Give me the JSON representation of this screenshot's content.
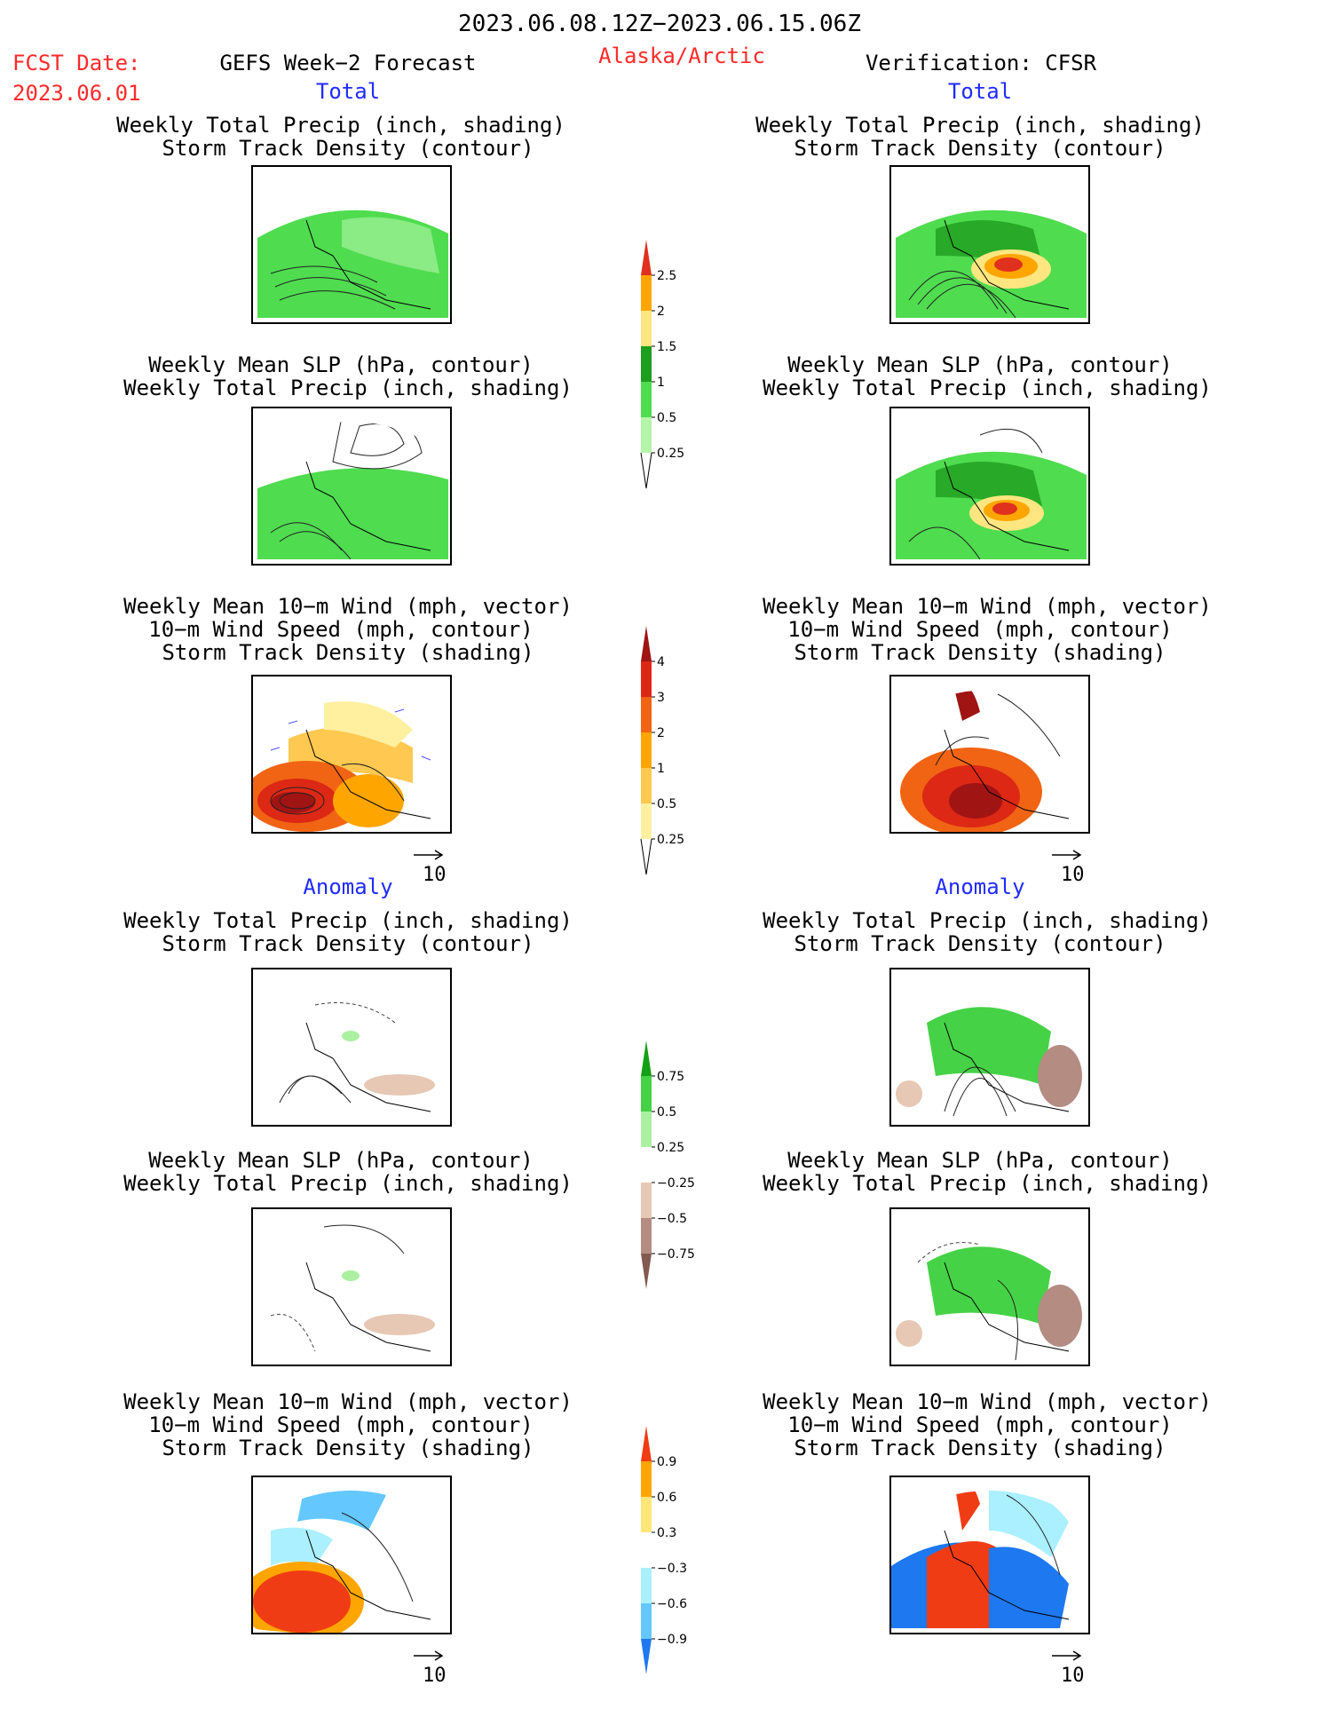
{
  "header": {
    "period": "2023.06.08.12Z−2023.06.15.06Z",
    "fcst_label": "FCST Date:",
    "fcst_date": "2023.06.01",
    "left_title": "GEFS Week−2 Forecast",
    "region": "Alaska/Arctic",
    "right_title": "Verification: CFSR"
  },
  "sections": {
    "total": "Total",
    "anomaly": "Anomaly"
  },
  "panel_titles": {
    "precip_track": [
      "Weekly Total Precip (inch, shading)",
      "Storm Track Density (contour)"
    ],
    "slp_precip": [
      "Weekly Mean SLP (hPa, contour)",
      "Weekly Total Precip (inch, shading)"
    ],
    "wind": [
      "Weekly Mean 10−m Wind (mph, vector)",
      "10−m Wind Speed (mph, contour)",
      "Storm Track Density (shading)"
    ]
  },
  "vector_ref": "10",
  "colorbars": {
    "precip_total": {
      "labels": [
        "2.5",
        "2",
        "1.5",
        "1",
        "0.5",
        "0.25"
      ],
      "colors": [
        "#e0301e",
        "#ffa500",
        "#ffe680",
        "#1e9e1e",
        "#4fdc4f",
        "#b4f5a8"
      ]
    },
    "track_total": {
      "labels": [
        "4",
        "3",
        "2",
        "1",
        "0.5",
        "0.25"
      ],
      "colors": [
        "#a01414",
        "#dc2814",
        "#f06414",
        "#ffa500",
        "#ffc850",
        "#fff0a0"
      ]
    },
    "precip_anom": {
      "labels": [
        "0.75",
        "0.5",
        "0.25",
        "−0.25",
        "−0.5",
        "−0.75"
      ],
      "colors": [
        "#14a014",
        "#46d246",
        "#aaf0a0",
        "#ffffff",
        "#e6c8b4",
        "#b48c82",
        "#825a50"
      ]
    },
    "track_anom": {
      "labels": [
        "0.9",
        "0.6",
        "0.3",
        "−0.3",
        "−0.6",
        "−0.9"
      ],
      "colors": [
        "#f03c14",
        "#ffa500",
        "#ffe678",
        "#ffffff",
        "#aaf0ff",
        "#64c8ff",
        "#1e78f0"
      ]
    }
  }
}
